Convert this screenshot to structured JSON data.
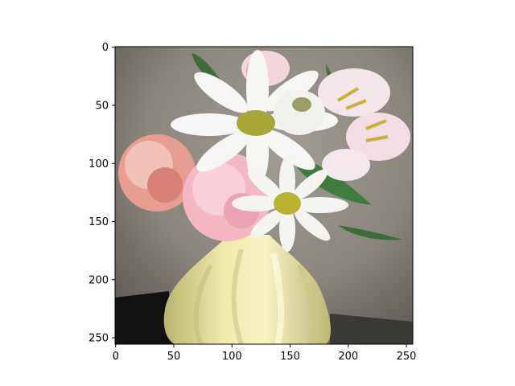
{
  "image": {
    "description_icon": "flower-vase-photo",
    "pixel_extent": {
      "x": [
        0,
        256
      ],
      "y": [
        0,
        256
      ]
    }
  },
  "axes": {
    "x_ticks": [
      {
        "value": 0,
        "label": "0"
      },
      {
        "value": 50,
        "label": "50"
      },
      {
        "value": 100,
        "label": "100"
      },
      {
        "value": 150,
        "label": "150"
      },
      {
        "value": 200,
        "label": "200"
      },
      {
        "value": 250,
        "label": "250"
      }
    ],
    "y_ticks": [
      {
        "value": 0,
        "label": "0"
      },
      {
        "value": 50,
        "label": "50"
      },
      {
        "value": 100,
        "label": "100"
      },
      {
        "value": 150,
        "label": "150"
      },
      {
        "value": 200,
        "label": "200"
      },
      {
        "value": 250,
        "label": "250"
      }
    ]
  },
  "colors": {
    "background_wall": "#8a857d",
    "vase": "#e6e09a",
    "white_petal": "#f4f4f2",
    "pink_carnation": "#f2b7c2",
    "peach_carnation": "#e79a8f",
    "leaf": "#3f6b3a",
    "daisy_center": "#b7b43a",
    "shadow": "#0f0f0f"
  }
}
